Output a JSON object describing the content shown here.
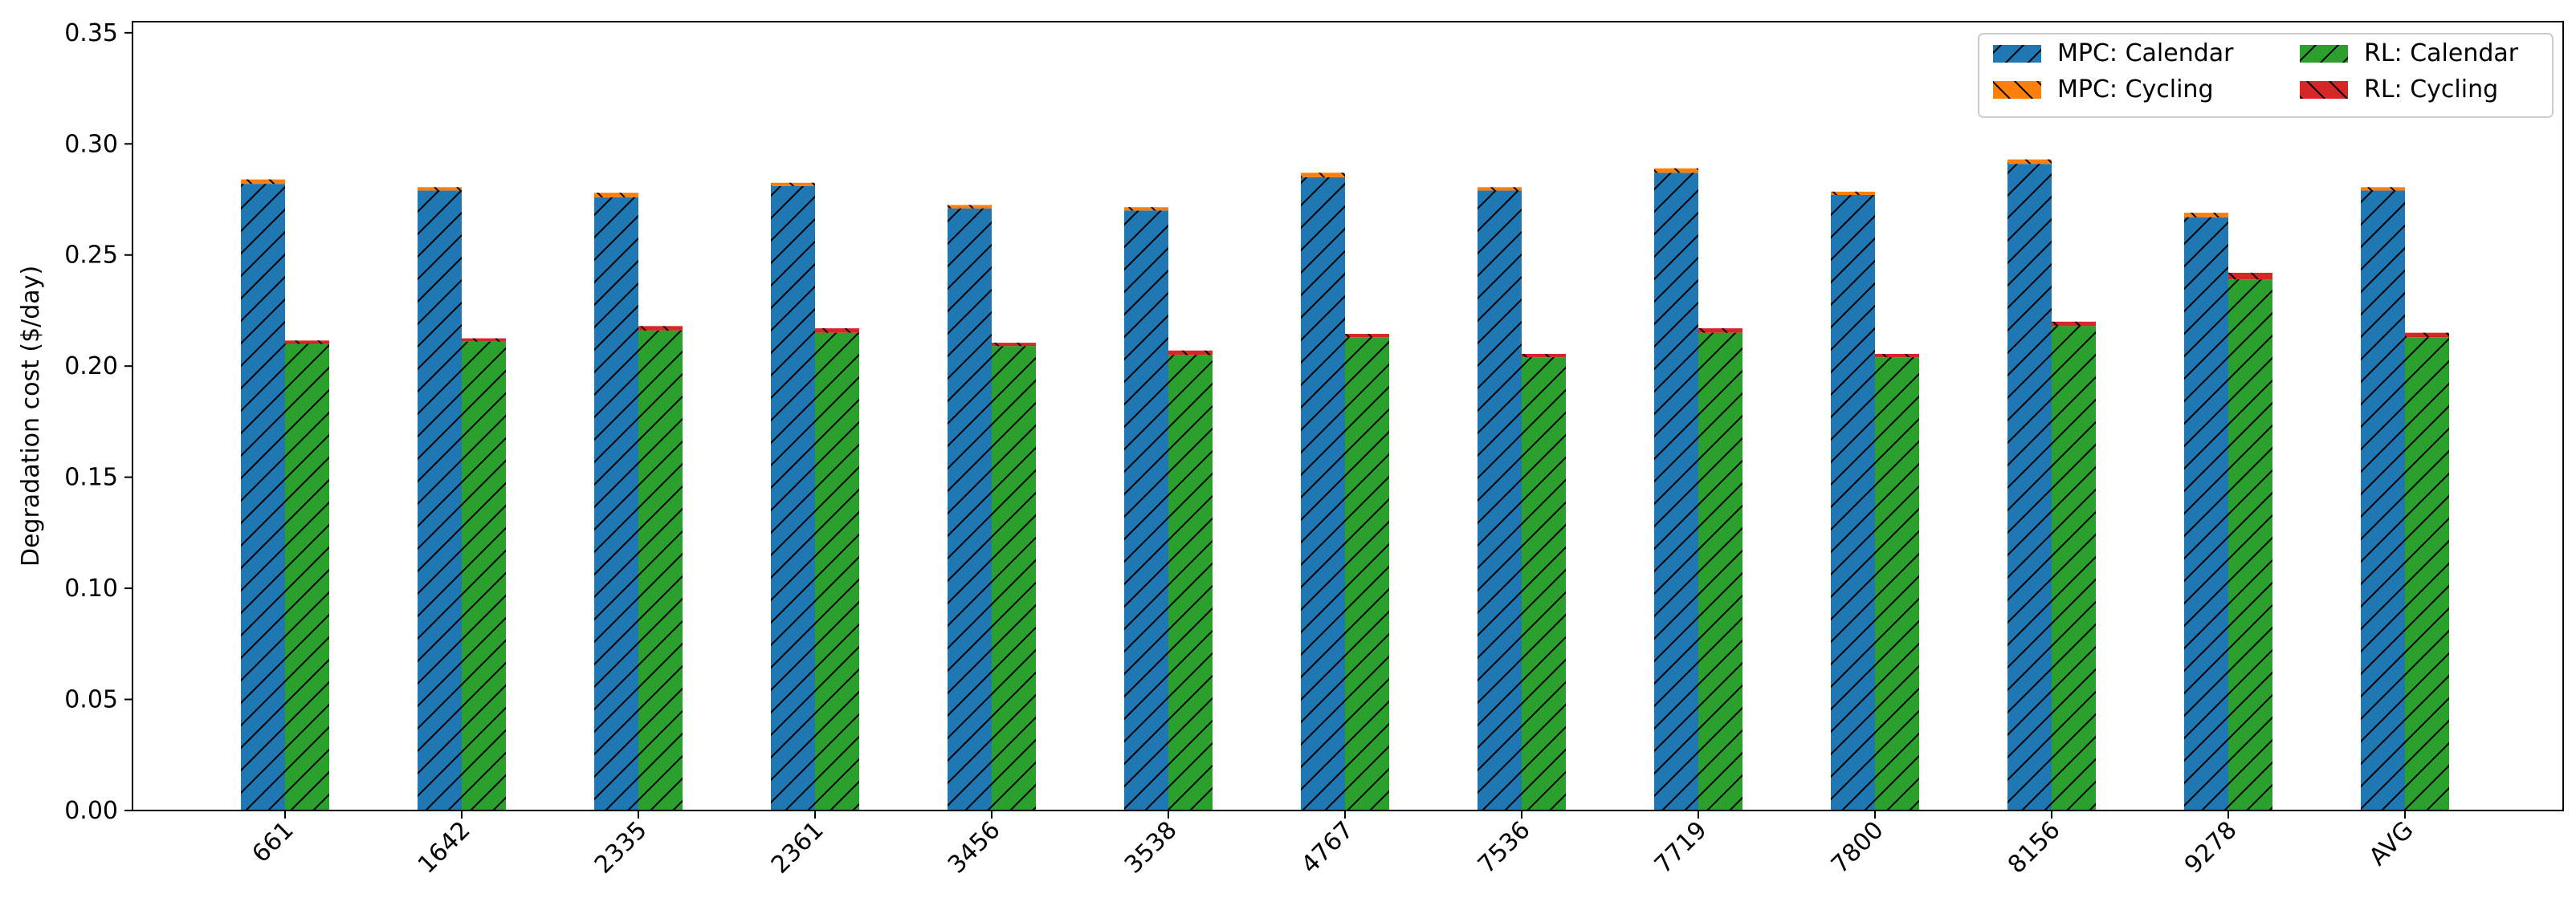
{
  "chart_data": {
    "type": "bar",
    "stacked": true,
    "grouped": true,
    "ylabel": "Degradation cost ($/day)",
    "xlabel": "",
    "ylim": [
      0,
      0.355
    ],
    "yticks": [
      "0.00",
      "0.05",
      "0.10",
      "0.15",
      "0.20",
      "0.25",
      "0.30",
      "0.35"
    ],
    "ytick_values": [
      0,
      0.05,
      0.1,
      0.15,
      0.2,
      0.25,
      0.3,
      0.35
    ],
    "grid": false,
    "legend_position": "top-right",
    "categories": [
      "661",
      "1642",
      "2335",
      "2361",
      "3456",
      "3538",
      "4767",
      "7536",
      "7719",
      "7800",
      "8156",
      "9278",
      "AVG"
    ],
    "series": [
      {
        "name": "MPC: Calendar",
        "group": "MPC",
        "color": "#1f77b4",
        "hatch": "forward",
        "values": [
          0.282,
          0.279,
          0.276,
          0.281,
          0.271,
          0.27,
          0.285,
          0.279,
          0.287,
          0.277,
          0.291,
          0.267,
          0.279
        ]
      },
      {
        "name": "MPC: Cycling",
        "group": "MPC",
        "color": "#ff7f0e",
        "hatch": "back",
        "values": [
          0.002,
          0.0015,
          0.002,
          0.0015,
          0.0015,
          0.0015,
          0.002,
          0.0015,
          0.002,
          0.0015,
          0.002,
          0.002,
          0.0015
        ]
      },
      {
        "name": "RL: Calendar",
        "group": "RL",
        "color": "#2ca02c",
        "hatch": "forward",
        "values": [
          0.21,
          0.211,
          0.216,
          0.215,
          0.209,
          0.205,
          0.213,
          0.204,
          0.215,
          0.204,
          0.218,
          0.239,
          0.213
        ]
      },
      {
        "name": "RL: Cycling",
        "group": "RL",
        "color": "#d62728",
        "hatch": "back",
        "values": [
          0.0015,
          0.0015,
          0.002,
          0.002,
          0.0015,
          0.002,
          0.0015,
          0.0015,
          0.002,
          0.0015,
          0.002,
          0.003,
          0.002
        ]
      }
    ]
  }
}
